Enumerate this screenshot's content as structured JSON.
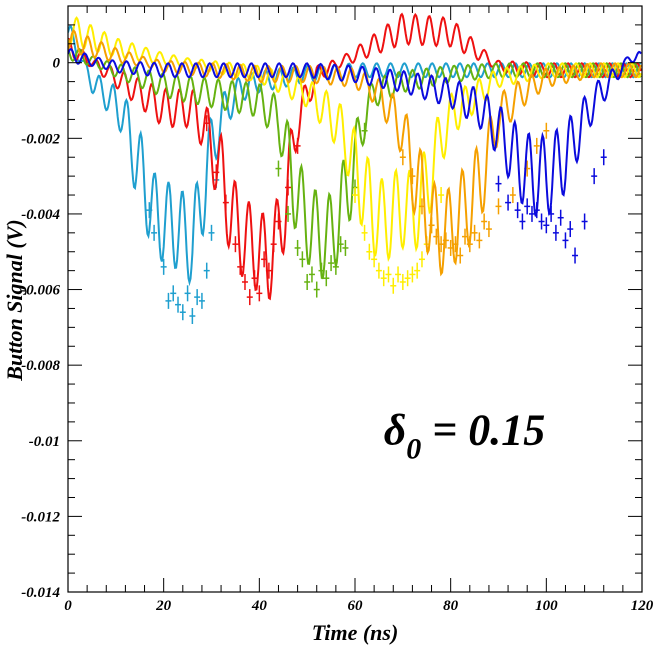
{
  "chart_data": {
    "type": "line",
    "title": "",
    "xlabel": "Time (ns)",
    "ylabel": "Button Signal (V)",
    "xlim": [
      0,
      120
    ],
    "ylim": [
      -0.014,
      0.0015
    ],
    "x_ticks": [
      0,
      20,
      40,
      60,
      80,
      100,
      120
    ],
    "x_tick_labels": [
      "0",
      "20",
      "40",
      "60",
      "80",
      "100",
      "120"
    ],
    "y_ticks": [
      0,
      -0.002,
      -0.004,
      -0.006,
      -0.008,
      -0.01,
      -0.012,
      -0.014
    ],
    "y_tick_labels": [
      "0",
      "-0.002",
      "-0.004",
      "-0.006",
      "-0.008",
      "-0.01",
      "-0.012",
      "-0.014"
    ],
    "grid": false,
    "legend": "none",
    "annotation": {
      "symbol": "δ",
      "subscript": "0",
      "text": " = 0.15",
      "x": 66,
      "y": -0.0101
    },
    "series": [
      {
        "color": "#1f9fcf",
        "x": [
          0,
          5,
          10,
          12,
          14,
          16,
          18,
          20,
          22,
          24,
          26,
          28,
          30,
          33,
          36,
          40,
          45,
          50,
          60,
          70,
          80,
          90,
          100,
          110,
          120
        ],
        "y": [
          0.0008,
          -0.0005,
          -0.0011,
          -0.0015,
          -0.0025,
          -0.0032,
          -0.004,
          -0.0042,
          -0.0043,
          -0.0045,
          -0.0048,
          -0.0036,
          -0.0022,
          -0.0012,
          -0.0007,
          -0.0005,
          -0.0004,
          -0.0003,
          -0.0002,
          -0.0002,
          -0.0002,
          -0.0002,
          -0.0002,
          -0.0002,
          -0.0002
        ],
        "markers_x": [
          17,
          18,
          20,
          21,
          22,
          23,
          24,
          25,
          26,
          27,
          28,
          29,
          30,
          31
        ],
        "markers_y": [
          -0.0039,
          -0.0045,
          -0.0054,
          -0.0063,
          -0.0061,
          -0.0064,
          -0.0066,
          -0.0061,
          -0.0067,
          -0.0062,
          -0.0063,
          -0.0055,
          -0.0045,
          -0.0031
        ]
      },
      {
        "color": "#ee1111",
        "x": [
          0,
          10,
          20,
          26,
          28,
          30,
          32,
          34,
          36,
          38,
          40,
          42,
          44,
          46,
          48,
          52,
          60,
          70,
          80,
          90,
          100,
          110,
          120
        ],
        "y": [
          0.0004,
          -0.0004,
          -0.0012,
          -0.0012,
          -0.0016,
          -0.0022,
          -0.003,
          -0.004,
          -0.0045,
          -0.0048,
          -0.005,
          -0.0052,
          -0.0046,
          -0.0033,
          -0.0015,
          -0.0003,
          0.0002,
          0.0009,
          0.0008,
          -0.0001,
          -0.0002,
          -0.0002,
          -0.0002
        ],
        "markers_x": [
          29,
          31,
          33,
          35,
          36,
          37,
          38,
          39,
          40,
          41,
          42,
          43,
          44,
          46,
          48
        ],
        "markers_y": [
          -0.0016,
          -0.0029,
          -0.0037,
          -0.0048,
          -0.0054,
          -0.0058,
          -0.0062,
          -0.0057,
          -0.0061,
          -0.0052,
          -0.0055,
          -0.0048,
          -0.0042,
          -0.0033,
          -0.0022
        ]
      },
      {
        "color": "#66b211",
        "x": [
          0,
          10,
          20,
          30,
          40,
          44,
          46,
          48,
          50,
          52,
          54,
          56,
          58,
          60,
          62,
          64,
          70,
          80,
          90,
          100,
          110,
          120
        ],
        "y": [
          0.0003,
          -0.0002,
          -0.0006,
          -0.0008,
          -0.001,
          -0.0015,
          -0.0025,
          -0.0036,
          -0.0042,
          -0.0045,
          -0.0047,
          -0.0043,
          -0.0035,
          -0.0026,
          -0.0014,
          -0.0008,
          -0.0005,
          -0.0003,
          -0.0002,
          -0.0002,
          -0.0002,
          -0.0002
        ],
        "markers_x": [
          44,
          46,
          48,
          49,
          50,
          51,
          52,
          53,
          54,
          55,
          56,
          57,
          58,
          60,
          62
        ],
        "markers_y": [
          -0.0028,
          -0.004,
          -0.0049,
          -0.0052,
          -0.0058,
          -0.0056,
          -0.006,
          -0.0055,
          -0.0057,
          -0.0053,
          -0.0054,
          -0.0048,
          -0.0049,
          -0.0033,
          -0.0018
        ]
      },
      {
        "color": "#ffee00",
        "x": [
          0,
          10,
          20,
          30,
          40,
          50,
          55,
          58,
          60,
          62,
          64,
          66,
          68,
          70,
          72,
          74,
          76,
          78,
          80,
          90,
          100,
          110,
          120
        ],
        "y": [
          0.0009,
          0.0004,
          0.0001,
          -0.0001,
          -0.0003,
          -0.0008,
          -0.0014,
          -0.002,
          -0.0028,
          -0.0034,
          -0.004,
          -0.0042,
          -0.004,
          -0.0038,
          -0.004,
          -0.0036,
          -0.0028,
          -0.002,
          -0.0014,
          -0.0004,
          -0.0002,
          -0.0002,
          -0.0002
        ],
        "markers_x": [
          60,
          62,
          63,
          64,
          65,
          66,
          67,
          68,
          69,
          70,
          71,
          72,
          73,
          74,
          75,
          76,
          78
        ],
        "markers_y": [
          -0.0035,
          -0.0045,
          -0.005,
          -0.0052,
          -0.0055,
          -0.0057,
          -0.0056,
          -0.0059,
          -0.0056,
          -0.0058,
          -0.0057,
          -0.0056,
          -0.0055,
          -0.0052,
          -0.0048,
          -0.0043,
          -0.0035
        ]
      },
      {
        "color": "#f5a000",
        "x": [
          0,
          10,
          20,
          30,
          40,
          50,
          60,
          65,
          70,
          72,
          74,
          76,
          78,
          80,
          82,
          84,
          86,
          88,
          90,
          95,
          100,
          110,
          120
        ],
        "y": [
          0.0006,
          0.0002,
          -0.0001,
          -0.0002,
          -0.0003,
          -0.0003,
          -0.0004,
          -0.0008,
          -0.0018,
          -0.0028,
          -0.0035,
          -0.0042,
          -0.0045,
          -0.0044,
          -0.004,
          -0.0037,
          -0.0032,
          -0.0024,
          -0.0014,
          -0.0008,
          -0.0004,
          -0.0002,
          -0.0002
        ],
        "markers_x": [
          70,
          72,
          74,
          76,
          77,
          78,
          79,
          80,
          81,
          82,
          83,
          84,
          85,
          86,
          87,
          88,
          90,
          93,
          96,
          98,
          100
        ],
        "markers_y": [
          -0.0025,
          -0.003,
          -0.0038,
          -0.0043,
          -0.0046,
          -0.0048,
          -0.0047,
          -0.0049,
          -0.0048,
          -0.0051,
          -0.0046,
          -0.0048,
          -0.0045,
          -0.0047,
          -0.0042,
          -0.0044,
          -0.0038,
          -0.0035,
          -0.0028,
          -0.0022,
          -0.0018
        ]
      },
      {
        "color": "#0b0bdd",
        "x": [
          0,
          10,
          20,
          30,
          40,
          50,
          60,
          70,
          80,
          86,
          88,
          90,
          92,
          94,
          96,
          98,
          100,
          102,
          104,
          106,
          108,
          110,
          114,
          118,
          120
        ],
        "y": [
          0.0002,
          -0.0001,
          -0.0002,
          -0.0002,
          -0.0002,
          -0.0002,
          -0.0003,
          -0.0005,
          -0.0008,
          -0.0012,
          -0.0015,
          -0.0018,
          -0.0022,
          -0.0026,
          -0.0029,
          -0.003,
          -0.003,
          -0.0028,
          -0.0025,
          -0.002,
          -0.0015,
          -0.001,
          -0.0004,
          0.0002,
          0.0001
        ],
        "markers_x": [
          90,
          92,
          94,
          95,
          96,
          97,
          98,
          99,
          100,
          101,
          102,
          103,
          104,
          105,
          106,
          108,
          110,
          112
        ],
        "markers_y": [
          -0.0032,
          -0.0037,
          -0.0039,
          -0.0042,
          -0.0038,
          -0.004,
          -0.0039,
          -0.0042,
          -0.0043,
          -0.004,
          -0.0045,
          -0.0041,
          -0.0047,
          -0.0044,
          -0.0051,
          -0.0042,
          -0.003,
          -0.0025
        ]
      }
    ]
  }
}
